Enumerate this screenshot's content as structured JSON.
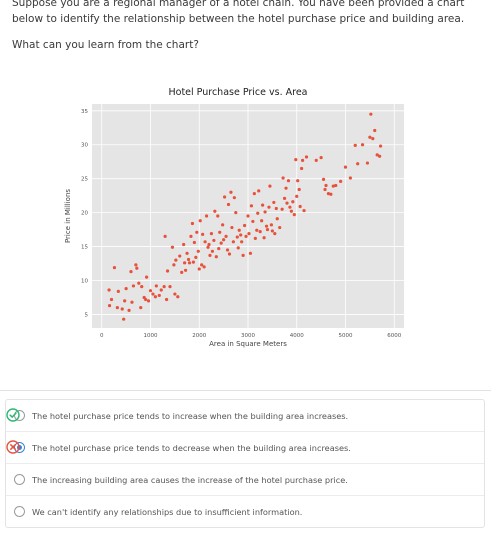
{
  "question": {
    "text": "Suppose you are a regional manager of a hotel chain. You have been provided a chart below to identify the relationship between the hotel purchase price and building area.",
    "prompt": "What can you learn from the chart?"
  },
  "chart_data": {
    "type": "scatter",
    "title": "Hotel Purchase Price vs. Area",
    "xlabel": "Area in Square Meters",
    "ylabel": "Price in Millions",
    "xlim": [
      -200,
      6200
    ],
    "ylim": [
      3,
      36
    ],
    "xticks": [
      0,
      1000,
      2000,
      3000,
      4000,
      5000,
      6000
    ],
    "yticks": [
      5,
      10,
      15,
      20,
      25,
      30,
      35
    ],
    "grid": true,
    "point_color": "#e8513b",
    "background": "#e5e5e5",
    "points": [
      [
        150,
        8.6
      ],
      [
        160,
        6.3
      ],
      [
        200,
        7.2
      ],
      [
        260,
        11.9
      ],
      [
        320,
        6.0
      ],
      [
        340,
        8.4
      ],
      [
        420,
        5.8
      ],
      [
        450,
        4.3
      ],
      [
        470,
        7.0
      ],
      [
        500,
        8.8
      ],
      [
        560,
        5.6
      ],
      [
        600,
        11.3
      ],
      [
        620,
        6.8
      ],
      [
        650,
        9.2
      ],
      [
        700,
        12.3
      ],
      [
        720,
        11.8
      ],
      [
        760,
        9.6
      ],
      [
        800,
        6.0
      ],
      [
        820,
        9.1
      ],
      [
        870,
        7.5
      ],
      [
        900,
        7.2
      ],
      [
        920,
        10.5
      ],
      [
        960,
        7.0
      ],
      [
        1000,
        8.5
      ],
      [
        1050,
        8.0
      ],
      [
        1100,
        7.6
      ],
      [
        1120,
        9.2
      ],
      [
        1180,
        7.8
      ],
      [
        1220,
        8.6
      ],
      [
        1280,
        9.1
      ],
      [
        1300,
        16.5
      ],
      [
        1330,
        7.2
      ],
      [
        1350,
        11.4
      ],
      [
        1400,
        9.1
      ],
      [
        1450,
        14.9
      ],
      [
        1480,
        12.3
      ],
      [
        1500,
        8.0
      ],
      [
        1520,
        13.0
      ],
      [
        1560,
        7.6
      ],
      [
        1600,
        13.6
      ],
      [
        1640,
        11.2
      ],
      [
        1680,
        15.3
      ],
      [
        1700,
        12.6
      ],
      [
        1720,
        11.5
      ],
      [
        1750,
        14.0
      ],
      [
        1780,
        13.1
      ],
      [
        1800,
        12.6
      ],
      [
        1830,
        16.5
      ],
      [
        1860,
        18.4
      ],
      [
        1880,
        12.7
      ],
      [
        1900,
        15.6
      ],
      [
        1930,
        13.4
      ],
      [
        1950,
        17.1
      ],
      [
        1980,
        14.3
      ],
      [
        2000,
        11.7
      ],
      [
        2020,
        18.8
      ],
      [
        2050,
        12.3
      ],
      [
        2070,
        16.8
      ],
      [
        2100,
        12.0
      ],
      [
        2120,
        15.7
      ],
      [
        2150,
        19.5
      ],
      [
        2180,
        14.9
      ],
      [
        2200,
        15.3
      ],
      [
        2220,
        13.7
      ],
      [
        2250,
        16.9
      ],
      [
        2270,
        14.3
      ],
      [
        2300,
        15.9
      ],
      [
        2320,
        20.2
      ],
      [
        2350,
        13.5
      ],
      [
        2380,
        19.5
      ],
      [
        2400,
        14.7
      ],
      [
        2420,
        17.1
      ],
      [
        2450,
        15.5
      ],
      [
        2480,
        18.2
      ],
      [
        2500,
        16.0
      ],
      [
        2520,
        22.3
      ],
      [
        2550,
        16.5
      ],
      [
        2580,
        14.5
      ],
      [
        2600,
        21.2
      ],
      [
        2620,
        13.9
      ],
      [
        2650,
        23.0
      ],
      [
        2670,
        17.8
      ],
      [
        2700,
        15.7
      ],
      [
        2720,
        22.2
      ],
      [
        2750,
        20.0
      ],
      [
        2780,
        16.4
      ],
      [
        2800,
        14.8
      ],
      [
        2820,
        17.4
      ],
      [
        2850,
        16.7
      ],
      [
        2870,
        15.7
      ],
      [
        2900,
        13.7
      ],
      [
        2930,
        18.1
      ],
      [
        2960,
        16.5
      ],
      [
        3000,
        19.5
      ],
      [
        3020,
        16.9
      ],
      [
        3050,
        14.0
      ],
      [
        3070,
        21.0
      ],
      [
        3100,
        18.7
      ],
      [
        3130,
        22.8
      ],
      [
        3150,
        16.2
      ],
      [
        3180,
        17.4
      ],
      [
        3200,
        19.9
      ],
      [
        3220,
        23.2
      ],
      [
        3250,
        17.2
      ],
      [
        3280,
        18.8
      ],
      [
        3300,
        21.1
      ],
      [
        3330,
        16.3
      ],
      [
        3350,
        20.1
      ],
      [
        3380,
        18.0
      ],
      [
        3400,
        17.5
      ],
      [
        3430,
        20.8
      ],
      [
        3450,
        23.9
      ],
      [
        3480,
        18.2
      ],
      [
        3500,
        17.3
      ],
      [
        3530,
        21.5
      ],
      [
        3550,
        16.9
      ],
      [
        3580,
        20.6
      ],
      [
        3600,
        19.1
      ],
      [
        3650,
        17.8
      ],
      [
        3700,
        20.5
      ],
      [
        3720,
        25.1
      ],
      [
        3750,
        22.1
      ],
      [
        3780,
        23.6
      ],
      [
        3800,
        21.4
      ],
      [
        3830,
        24.7
      ],
      [
        3860,
        20.8
      ],
      [
        3890,
        20.2
      ],
      [
        3920,
        21.6
      ],
      [
        3950,
        19.7
      ],
      [
        3980,
        27.8
      ],
      [
        4000,
        22.4
      ],
      [
        4020,
        24.7
      ],
      [
        4050,
        23.4
      ],
      [
        4070,
        20.9
      ],
      [
        4100,
        26.5
      ],
      [
        4120,
        27.7
      ],
      [
        4150,
        20.3
      ],
      [
        4200,
        28.2
      ],
      [
        4400,
        27.7
      ],
      [
        4500,
        28.1
      ],
      [
        4550,
        24.9
      ],
      [
        4580,
        23.4
      ],
      [
        4600,
        24.0
      ],
      [
        4650,
        22.8
      ],
      [
        4700,
        22.7
      ],
      [
        4750,
        23.9
      ],
      [
        4800,
        24.0
      ],
      [
        4900,
        24.6
      ],
      [
        5000,
        26.7
      ],
      [
        5100,
        25.1
      ],
      [
        5200,
        29.9
      ],
      [
        5250,
        27.2
      ],
      [
        5350,
        30.0
      ],
      [
        5450,
        27.3
      ],
      [
        5500,
        31.1
      ],
      [
        5520,
        34.5
      ],
      [
        5560,
        30.9
      ],
      [
        5600,
        32.1
      ],
      [
        5650,
        28.5
      ],
      [
        5700,
        28.3
      ],
      [
        5720,
        29.8
      ]
    ]
  },
  "options": [
    {
      "label": "The hotel purchase price tends to increase when the building area increases.",
      "selected": false,
      "status": "correct"
    },
    {
      "label": "The hotel purchase price tends to decrease when the building area increases.",
      "selected": true,
      "status": "incorrect"
    },
    {
      "label": "The increasing building area causes the increase of the hotel purchase price.",
      "selected": false,
      "status": ""
    },
    {
      "label": "We can't identify any relationships due to insufficient information.",
      "selected": false,
      "status": ""
    }
  ],
  "colors": {
    "correct": "#2bb673",
    "incorrect": "#e5533d"
  }
}
